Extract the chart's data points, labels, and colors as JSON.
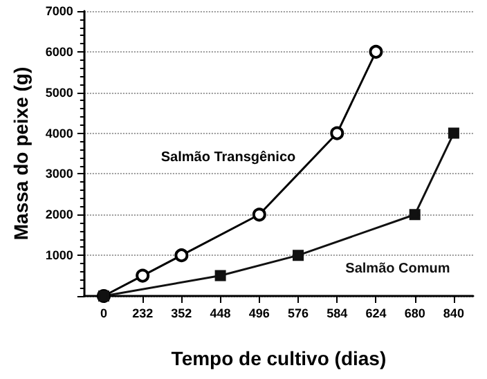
{
  "chart_data": {
    "type": "line",
    "xlabel": "Tempo de cultivo (dias)",
    "ylabel": "Massa do peixe (g)",
    "categories": [
      "0",
      "232",
      "352",
      "448",
      "496",
      "576",
      "584",
      "624",
      "680",
      "840"
    ],
    "ylim": [
      0,
      7000
    ],
    "yticks": [
      {
        "value": 0,
        "label": null
      },
      1000,
      2000,
      3000,
      4000,
      5000,
      6000,
      7000
    ],
    "grid": "y",
    "line_style": "solid",
    "series": [
      {
        "name": "Salmão Transgênico",
        "color": "#000000",
        "marker": "circle",
        "x": [
          "0",
          "232",
          "352",
          "496",
          "584",
          "624"
        ],
        "values": [
          0,
          500,
          1000,
          2000,
          4000,
          6000
        ]
      },
      {
        "name": "Salmão Comum",
        "color": "#111111",
        "marker": "square",
        "x": [
          "0",
          "448",
          "576",
          "680",
          "840"
        ],
        "values": [
          0,
          500,
          1000,
          2000,
          4000
        ]
      }
    ]
  }
}
